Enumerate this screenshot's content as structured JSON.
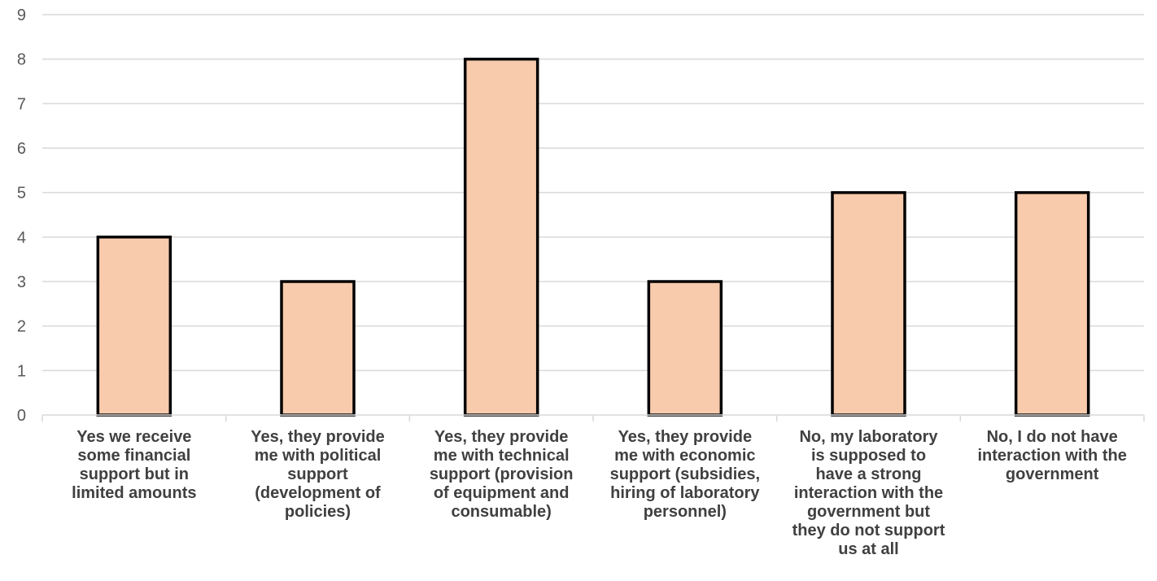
{
  "chart_data": {
    "type": "bar",
    "categories": [
      "Yes we receive\nsome financial\nsupport but in\nlimited amounts",
      "Yes, they provide\nme with political\nsupport\n(development of\npolicies)",
      "Yes, they provide\nme with technical\nsupport (provision\nof equipment and\nconsumable)",
      "Yes, they provide\nme with economic\nsupport (subsidies,\nhiring of laboratory\npersonnel)",
      "No, my laboratory\nis supposed to\nhave a strong\ninteraction with the\ngovernment but\nthey do not support\nus at all",
      "No, I do not have\ninteraction with the\ngovernment"
    ],
    "values": [
      4,
      3,
      8,
      3,
      5,
      5
    ],
    "ylim": [
      0,
      9
    ],
    "yticks": [
      "0",
      "1",
      "2",
      "3",
      "4",
      "5",
      "6",
      "7",
      "8",
      "9"
    ],
    "grid": true,
    "bar_color": "#F8CBAD",
    "bar_edge_color": "#000000"
  }
}
